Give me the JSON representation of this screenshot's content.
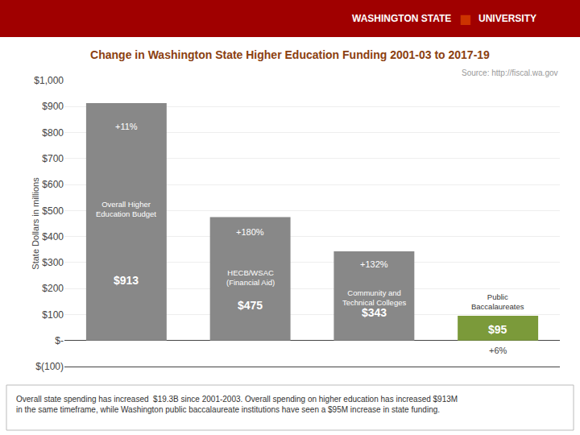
{
  "chart_data": {
    "type": "bar",
    "title": "Change in Washington State Higher Education Funding 2001-03 to 2017-19",
    "ylabel": "State Dollars in millions",
    "categories": [
      "Overall Higher\nEducation Budget",
      "HECB/WSAC\n(Financial Aid)",
      "Community and\nTechnical Colleges",
      "Public\nBaccalaureates"
    ],
    "values": [
      913,
      475,
      343,
      95
    ],
    "value_labels": [
      "$913",
      "$475",
      "$343",
      "$95"
    ],
    "pct_labels": [
      "+11%",
      "+180%",
      "+132%",
      "+6%"
    ],
    "colors": [
      "#888888",
      "#888888",
      "#888888",
      "#7B9A3A"
    ],
    "data_labels": true,
    "ylim": [
      -100,
      1000
    ],
    "yticks": [
      {
        "value": -100,
        "label": "$(100)"
      },
      {
        "value": 0,
        "label": "$-"
      },
      {
        "value": 100,
        "label": "$100"
      },
      {
        "value": 200,
        "label": "$200"
      },
      {
        "value": 300,
        "label": "$300"
      },
      {
        "value": 400,
        "label": "$400"
      },
      {
        "value": 500,
        "label": "$500"
      },
      {
        "value": 600,
        "label": "$600"
      },
      {
        "value": 700,
        "label": "$700"
      },
      {
        "value": 800,
        "label": "$800"
      },
      {
        "value": 900,
        "label": "$900"
      },
      {
        "value": 1000,
        "label": "$1,000"
      }
    ],
    "grid": true,
    "tick_labels": "y",
    "annotations": [
      "Source: http://fiscal.wa.gov",
      "WASHINGTON STATE",
      "■",
      "UNIVERSITY",
      "Overall state spending has increased  $19.3B since 2001-2003. Overall spending on higher education has increased $913M\nin the same timeframe, while Washington public baccalaureate institutions have seen a $95M increase in state funding."
    ]
  }
}
